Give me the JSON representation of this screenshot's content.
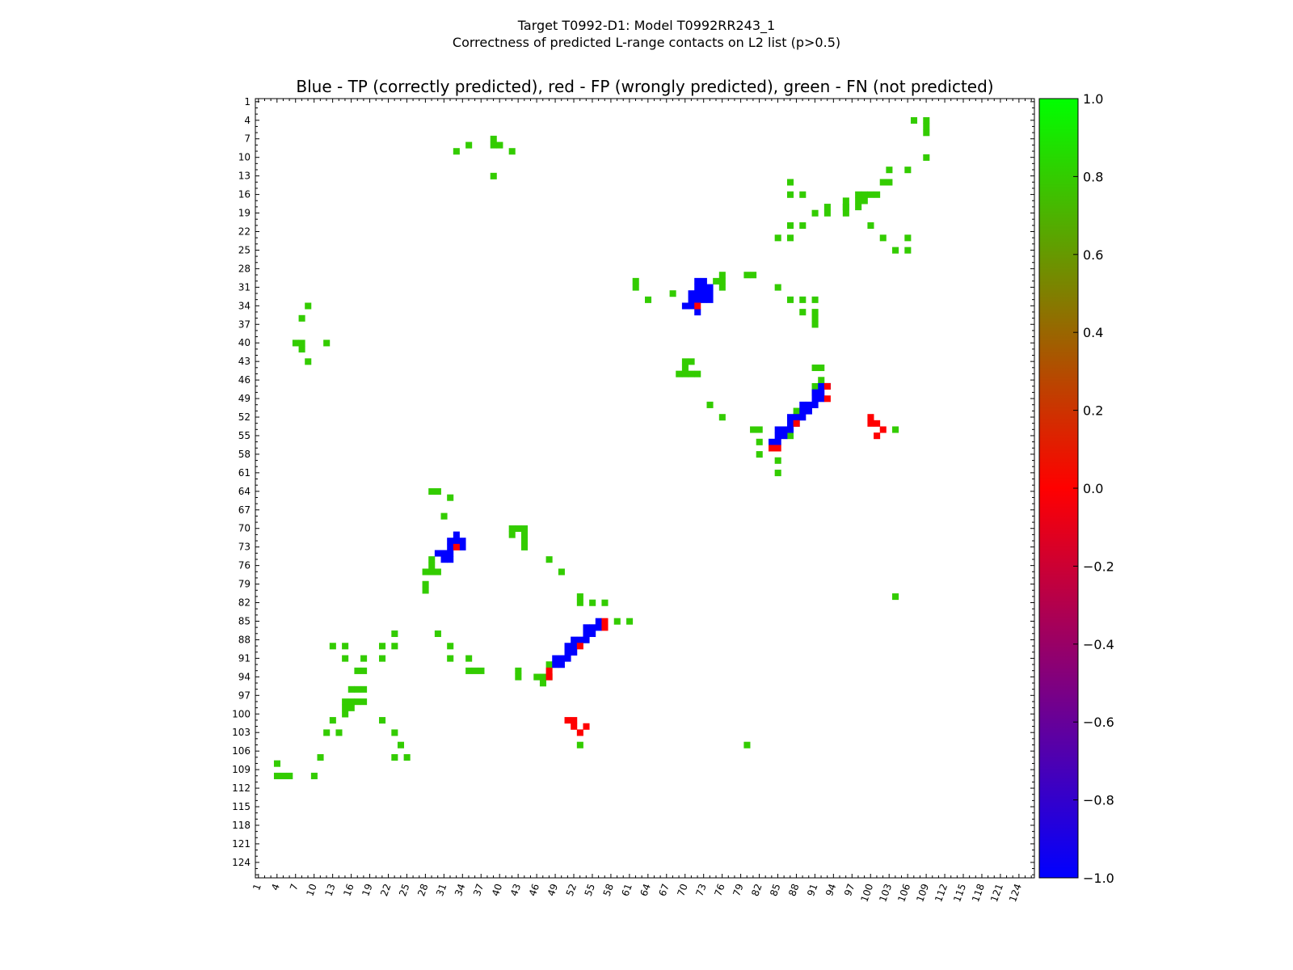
{
  "figure": {
    "suptitle_line1": "Target T0992-D1: Model T0992RR243_1",
    "suptitle_line2": "Correctness of predicted L-range contacts on L2 list (p>0.5)",
    "plot_title": "Blue - TP (correctly predicted), red - FP (wrongly predicted), green - FN (not predicted)"
  },
  "colors": {
    "tp": "#0000ff",
    "fp": "#ff0000",
    "fn": "#33cc00"
  },
  "chart_data": {
    "type": "heatmap",
    "title": "Blue - TP (correctly predicted), red - FP (wrongly predicted), green - FN (not predicted)",
    "xlim": [
      1,
      126
    ],
    "ylim": [
      1,
      126
    ],
    "x_ticks": [
      1,
      4,
      7,
      10,
      13,
      16,
      19,
      22,
      25,
      28,
      31,
      34,
      37,
      40,
      43,
      46,
      49,
      52,
      55,
      58,
      61,
      64,
      67,
      70,
      73,
      76,
      79,
      82,
      85,
      88,
      91,
      94,
      97,
      100,
      103,
      106,
      109,
      112,
      115,
      118,
      121,
      124
    ],
    "y_ticks": [
      1,
      4,
      7,
      10,
      13,
      16,
      19,
      22,
      25,
      28,
      31,
      34,
      37,
      40,
      43,
      46,
      49,
      52,
      55,
      58,
      61,
      64,
      67,
      70,
      73,
      76,
      79,
      82,
      85,
      88,
      91,
      94,
      97,
      100,
      103,
      106,
      109,
      112,
      115,
      118,
      121,
      124
    ],
    "colorbar": {
      "min": -1.0,
      "max": 1.0,
      "ticks": [
        "1.0",
        "0.8",
        "0.6",
        "0.4",
        "0.2",
        "0.0",
        "−0.2",
        "−0.4",
        "−0.6",
        "−0.8",
        "−1.0"
      ]
    },
    "tp": [
      [
        72,
        30
      ],
      [
        73,
        30
      ],
      [
        72,
        31
      ],
      [
        73,
        31
      ],
      [
        74,
        31
      ],
      [
        71,
        32
      ],
      [
        72,
        32
      ],
      [
        73,
        32
      ],
      [
        74,
        32
      ],
      [
        71,
        33
      ],
      [
        72,
        33
      ],
      [
        73,
        33
      ],
      [
        74,
        33
      ],
      [
        70,
        34
      ],
      [
        71,
        34
      ],
      [
        72,
        35
      ],
      [
        92,
        47
      ],
      [
        93,
        47
      ],
      [
        91,
        48
      ],
      [
        92,
        48
      ],
      [
        91,
        49
      ],
      [
        92,
        49
      ],
      [
        89,
        50
      ],
      [
        90,
        50
      ],
      [
        91,
        50
      ],
      [
        89,
        51
      ],
      [
        90,
        51
      ],
      [
        87,
        52
      ],
      [
        88,
        52
      ],
      [
        89,
        52
      ],
      [
        87,
        53
      ],
      [
        88,
        53
      ],
      [
        85,
        54
      ],
      [
        86,
        54
      ],
      [
        87,
        54
      ],
      [
        85,
        55
      ],
      [
        86,
        55
      ],
      [
        84,
        56
      ],
      [
        85,
        56
      ],
      [
        33,
        71
      ],
      [
        32,
        72
      ],
      [
        33,
        72
      ],
      [
        34,
        72
      ],
      [
        32,
        73
      ],
      [
        34,
        73
      ],
      [
        30,
        74
      ],
      [
        31,
        74
      ],
      [
        32,
        74
      ],
      [
        31,
        75
      ],
      [
        32,
        75
      ],
      [
        56,
        85
      ],
      [
        54,
        86
      ],
      [
        55,
        86
      ],
      [
        56,
        86
      ],
      [
        54,
        87
      ],
      [
        55,
        87
      ],
      [
        52,
        88
      ],
      [
        53,
        88
      ],
      [
        54,
        88
      ],
      [
        51,
        89
      ],
      [
        52,
        89
      ],
      [
        51,
        90
      ],
      [
        52,
        90
      ],
      [
        49,
        91
      ],
      [
        50,
        91
      ],
      [
        51,
        91
      ],
      [
        49,
        92
      ],
      [
        50,
        92
      ]
    ],
    "fp": [
      [
        72,
        34
      ],
      [
        93,
        47
      ],
      [
        93,
        49
      ],
      [
        88,
        53
      ],
      [
        84,
        57
      ],
      [
        85,
        57
      ],
      [
        100,
        52
      ],
      [
        100,
        53
      ],
      [
        101,
        53
      ],
      [
        102,
        54
      ],
      [
        101,
        55
      ],
      [
        33,
        73
      ],
      [
        57,
        85
      ],
      [
        57,
        86
      ],
      [
        53,
        89
      ],
      [
        48,
        93
      ],
      [
        48,
        94
      ],
      [
        51,
        101
      ],
      [
        52,
        101
      ],
      [
        52,
        102
      ],
      [
        54,
        102
      ],
      [
        53,
        103
      ]
    ],
    "fn": [
      [
        107,
        4
      ],
      [
        109,
        4
      ],
      [
        109,
        5
      ],
      [
        109,
        6
      ],
      [
        39,
        7
      ],
      [
        39,
        8
      ],
      [
        40,
        8
      ],
      [
        35,
        8
      ],
      [
        33,
        9
      ],
      [
        42,
        9
      ],
      [
        109,
        10
      ],
      [
        106,
        12
      ],
      [
        103,
        12
      ],
      [
        39,
        13
      ],
      [
        102,
        14
      ],
      [
        103,
        14
      ],
      [
        87,
        14
      ],
      [
        87,
        16
      ],
      [
        89,
        16
      ],
      [
        98,
        16
      ],
      [
        99,
        16
      ],
      [
        100,
        16
      ],
      [
        101,
        16
      ],
      [
        98,
        17
      ],
      [
        99,
        17
      ],
      [
        96,
        17
      ],
      [
        96,
        18
      ],
      [
        96,
        19
      ],
      [
        93,
        18
      ],
      [
        93,
        19
      ],
      [
        91,
        19
      ],
      [
        98,
        18
      ],
      [
        96,
        18
      ],
      [
        100,
        21
      ],
      [
        89,
        21
      ],
      [
        87,
        21
      ],
      [
        85,
        23
      ],
      [
        87,
        23
      ],
      [
        102,
        23
      ],
      [
        106,
        23
      ],
      [
        104,
        25
      ],
      [
        106,
        25
      ],
      [
        76,
        29
      ],
      [
        76,
        30
      ],
      [
        75,
        30
      ],
      [
        80,
        29
      ],
      [
        81,
        29
      ],
      [
        62,
        30
      ],
      [
        62,
        31
      ],
      [
        76,
        31
      ],
      [
        85,
        31
      ],
      [
        68,
        32
      ],
      [
        64,
        33
      ],
      [
        87,
        33
      ],
      [
        89,
        33
      ],
      [
        91,
        33
      ],
      [
        89,
        35
      ],
      [
        91,
        35
      ],
      [
        91,
        36
      ],
      [
        91,
        37
      ],
      [
        9,
        34
      ],
      [
        8,
        36
      ],
      [
        7,
        40
      ],
      [
        8,
        40
      ],
      [
        8,
        41
      ],
      [
        12,
        40
      ],
      [
        9,
        43
      ],
      [
        70,
        43
      ],
      [
        71,
        43
      ],
      [
        70,
        44
      ],
      [
        69,
        45
      ],
      [
        70,
        45
      ],
      [
        71,
        45
      ],
      [
        72,
        45
      ],
      [
        91,
        44
      ],
      [
        92,
        44
      ],
      [
        92,
        46
      ],
      [
        91,
        47
      ],
      [
        93,
        47
      ],
      [
        91,
        48
      ],
      [
        74,
        50
      ],
      [
        76,
        52
      ],
      [
        81,
        54
      ],
      [
        82,
        54
      ],
      [
        82,
        56
      ],
      [
        82,
        58
      ],
      [
        88,
        51
      ],
      [
        87,
        55
      ],
      [
        85,
        59
      ],
      [
        85,
        61
      ],
      [
        104,
        54
      ],
      [
        29,
        64
      ],
      [
        30,
        64
      ],
      [
        32,
        65
      ],
      [
        31,
        68
      ],
      [
        42,
        70
      ],
      [
        43,
        70
      ],
      [
        44,
        70
      ],
      [
        42,
        71
      ],
      [
        44,
        71
      ],
      [
        44,
        72
      ],
      [
        44,
        73
      ],
      [
        29,
        75
      ],
      [
        29,
        76
      ],
      [
        28,
        77
      ],
      [
        29,
        77
      ],
      [
        30,
        77
      ],
      [
        48,
        75
      ],
      [
        50,
        77
      ],
      [
        28,
        79
      ],
      [
        28,
        80
      ],
      [
        104,
        81
      ],
      [
        53,
        81
      ],
      [
        53,
        82
      ],
      [
        55,
        82
      ],
      [
        57,
        82
      ],
      [
        59,
        85
      ],
      [
        61,
        85
      ],
      [
        54,
        88
      ],
      [
        30,
        87
      ],
      [
        23,
        87
      ],
      [
        32,
        89
      ],
      [
        23,
        89
      ],
      [
        21,
        89
      ],
      [
        13,
        89
      ],
      [
        15,
        89
      ],
      [
        15,
        91
      ],
      [
        18,
        91
      ],
      [
        21,
        91
      ],
      [
        32,
        91
      ],
      [
        35,
        91
      ],
      [
        17,
        93
      ],
      [
        18,
        93
      ],
      [
        35,
        93
      ],
      [
        36,
        93
      ],
      [
        37,
        93
      ],
      [
        43,
        93
      ],
      [
        48,
        92
      ],
      [
        43,
        94
      ],
      [
        46,
        94
      ],
      [
        47,
        94
      ],
      [
        48,
        94
      ],
      [
        47,
        95
      ],
      [
        16,
        96
      ],
      [
        17,
        96
      ],
      [
        18,
        96
      ],
      [
        15,
        98
      ],
      [
        16,
        98
      ],
      [
        17,
        98
      ],
      [
        18,
        98
      ],
      [
        15,
        99
      ],
      [
        16,
        99
      ],
      [
        15,
        100
      ],
      [
        13,
        101
      ],
      [
        21,
        101
      ],
      [
        12,
        103
      ],
      [
        14,
        103
      ],
      [
        23,
        103
      ],
      [
        24,
        105
      ],
      [
        53,
        105
      ],
      [
        80,
        105
      ],
      [
        11,
        107
      ],
      [
        23,
        107
      ],
      [
        25,
        107
      ],
      [
        4,
        108
      ],
      [
        4,
        110
      ],
      [
        5,
        110
      ],
      [
        6,
        110
      ],
      [
        10,
        110
      ]
    ]
  }
}
